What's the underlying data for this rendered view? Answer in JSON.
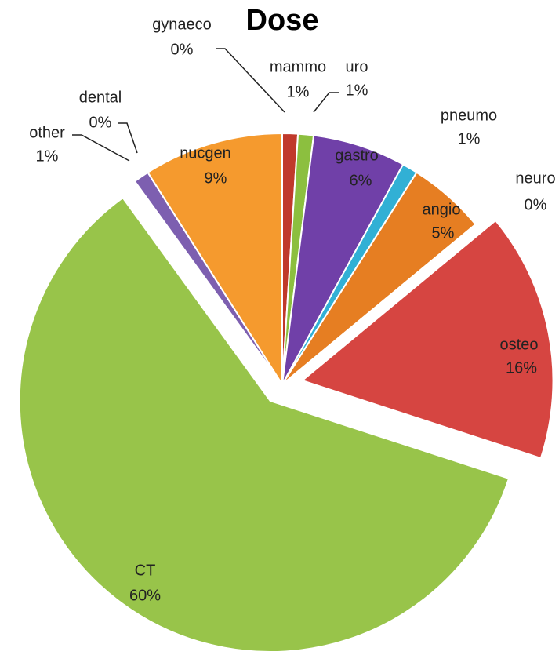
{
  "chart_data": {
    "type": "pie",
    "title": "Dose",
    "categories": [
      "gynaeco",
      "mammo",
      "uro",
      "gastro",
      "pneumo",
      "angio",
      "neuro",
      "osteo",
      "CT",
      "other",
      "dental",
      "nucgen"
    ],
    "values": [
      0,
      1,
      1,
      6,
      1,
      5,
      0,
      16,
      60,
      1,
      0,
      9
    ],
    "value_labels": [
      "0%",
      "1%",
      "1%",
      "6%",
      "1%",
      "5%",
      "0%",
      "16%",
      "60%",
      "1%",
      "0%",
      "9%"
    ],
    "colors": [
      "#4f81bd",
      "#c0392b",
      "#8cbf3f",
      "#7040a8",
      "#31b0d5",
      "#e67e22",
      "#3f6fb5",
      "#d64541",
      "#98c44a",
      "#7d5fb0",
      "#2aa198",
      "#f59a2e"
    ]
  }
}
